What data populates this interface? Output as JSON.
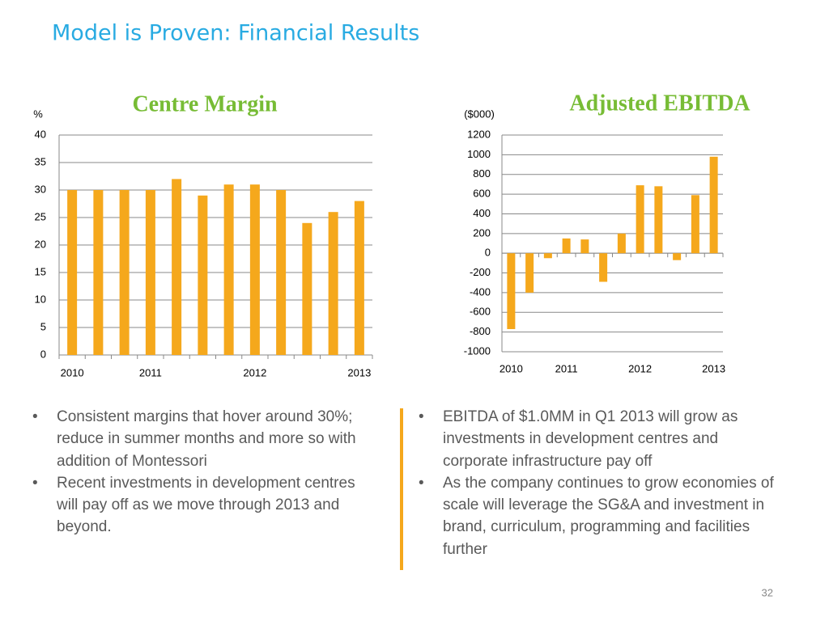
{
  "title": "Model is Proven: Financial Results",
  "chart_data": [
    {
      "type": "bar",
      "title": "Centre Margin",
      "y_label": "%",
      "categories": [
        "2010",
        null,
        null,
        "2011",
        null,
        null,
        null,
        "2012",
        null,
        null,
        null,
        "2013"
      ],
      "values": [
        30,
        30,
        30,
        30,
        32,
        29,
        31,
        31,
        30,
        24,
        26,
        28
      ],
      "color": "#f5a81c",
      "ylim": [
        0,
        40
      ],
      "yticks": [
        0,
        5,
        10,
        15,
        20,
        25,
        30,
        35,
        40
      ],
      "grid": true
    },
    {
      "type": "bar",
      "title": "Adjusted EBITDA",
      "y_label": "($000)",
      "categories": [
        "2010",
        null,
        null,
        "2011",
        null,
        null,
        null,
        "2012",
        null,
        null,
        null,
        "2013"
      ],
      "values": [
        -770,
        -400,
        -50,
        150,
        140,
        -290,
        200,
        690,
        680,
        -70,
        590,
        980
      ],
      "color": "#f5a81c",
      "ylim": [
        -1000,
        1200
      ],
      "yticks": [
        -1000,
        -800,
        -600,
        -400,
        -200,
        0,
        200,
        400,
        600,
        800,
        1000,
        1200
      ],
      "grid": true
    }
  ],
  "bullets_left": [
    "Consistent margins that hover around 30%; reduce in summer months and more so with addition of Montessori",
    "Recent investments in development centres will pay off as we move through 2013 and beyond."
  ],
  "bullets_right": [
    "EBITDA of $1.0MM in Q1 2013 will grow as investments in development centres and corporate infrastructure pay off",
    "As the company continues to grow economies of scale will leverage the SG&A and investment in brand, curriculum, programming and facilities further"
  ],
  "page_number": "32"
}
